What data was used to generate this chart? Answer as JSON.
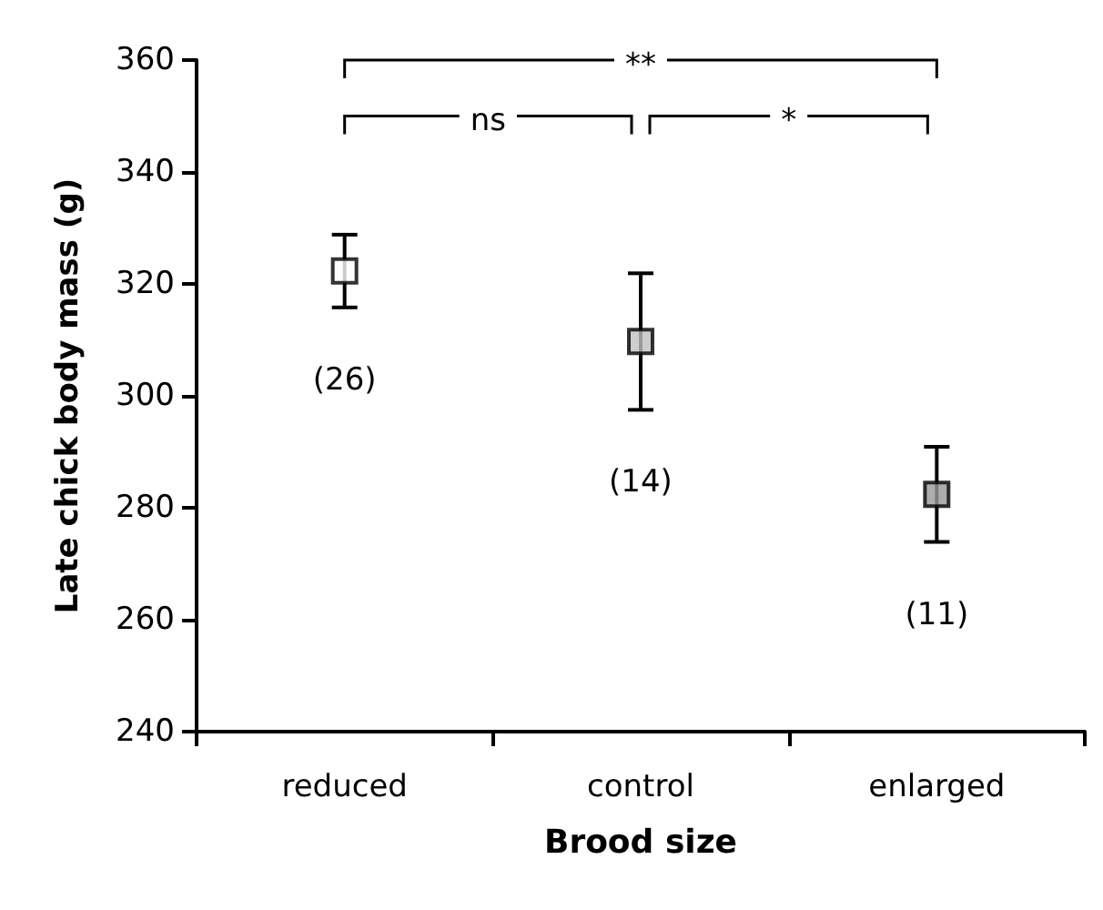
{
  "chart_data": {
    "type": "scatter",
    "xlabel": "Brood size",
    "ylabel": "Late chick body mass (g)",
    "categories": [
      "reduced",
      "control",
      "enlarged"
    ],
    "values": [
      322.3,
      309.7,
      282.4
    ],
    "errors": [
      6.5,
      12.2,
      8.5
    ],
    "colors": [
      "#ffffff",
      "#c0c0c0",
      "#999999"
    ],
    "marker": "square",
    "grid": false,
    "ylim": [
      240,
      360
    ],
    "yticks": [
      240,
      260,
      280,
      300,
      320,
      340,
      360
    ],
    "annotations": [
      "**",
      "ns",
      "*",
      "(26)",
      "(14)",
      "(11)"
    ]
  }
}
